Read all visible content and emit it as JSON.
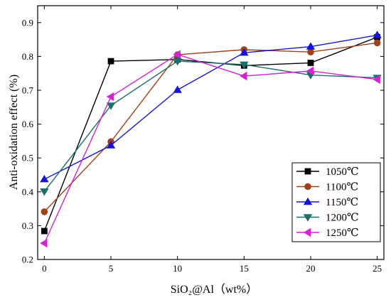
{
  "chart_data": {
    "type": "line",
    "title": "",
    "xlabel": "SiO₂@Al（wt%）",
    "ylabel": "Anti-oxidation effect (%)",
    "x": [
      0,
      5,
      10,
      15,
      20,
      25
    ],
    "xlim": [
      -0.5,
      25.5
    ],
    "ylim": [
      0.2,
      0.95
    ],
    "xticks": [
      0,
      5,
      10,
      15,
      20,
      25
    ],
    "yticks": [
      0.2,
      0.3,
      0.4,
      0.5,
      0.6,
      0.7,
      0.8,
      0.9
    ],
    "legend_position": "bottom-right",
    "grid": false,
    "series": [
      {
        "name": "1050℃",
        "color": "#000000",
        "marker": "square",
        "values": [
          0.284,
          0.786,
          0.791,
          0.773,
          0.781,
          0.857
        ]
      },
      {
        "name": "1100℃",
        "color": "#a0401a",
        "marker": "circle",
        "values": [
          0.341,
          0.548,
          0.805,
          0.82,
          0.813,
          0.84
        ]
      },
      {
        "name": "1150℃",
        "color": "#1414d8",
        "marker": "triangle-up",
        "values": [
          0.437,
          0.537,
          0.701,
          0.811,
          0.829,
          0.863
        ]
      },
      {
        "name": "1200℃",
        "color": "#1a6e6e",
        "marker": "triangle-down",
        "values": [
          0.401,
          0.655,
          0.786,
          0.776,
          0.745,
          0.737
        ]
      },
      {
        "name": "1250℃",
        "color": "#d323d3",
        "marker": "triangle-left",
        "values": [
          0.248,
          0.681,
          0.806,
          0.742,
          0.757,
          0.732
        ]
      }
    ]
  }
}
